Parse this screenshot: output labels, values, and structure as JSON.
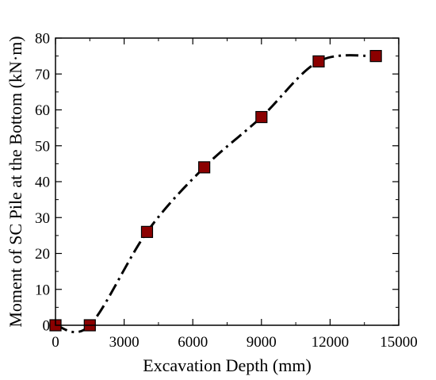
{
  "chart_data": {
    "type": "line",
    "xlabel": "Excavation Depth (mm)",
    "ylabel": "Moment of SC Pile at the Bottom (kN·m)",
    "xlim": [
      0,
      15000
    ],
    "ylim": [
      0,
      80
    ],
    "xticks": [
      0,
      3000,
      6000,
      9000,
      12000,
      15000
    ],
    "yticks": [
      0,
      10,
      20,
      30,
      40,
      50,
      60,
      70,
      80
    ],
    "x_tick_labels": [
      "0",
      "3000",
      "6000",
      "9000",
      "12000",
      "15000"
    ],
    "y_tick_labels": [
      "0",
      "10",
      "20",
      "30",
      "40",
      "50",
      "60",
      "70",
      "80"
    ],
    "grid": false,
    "series": [
      {
        "x": [
          0,
          1500,
          4000,
          6500,
          9000,
          11500,
          14000
        ],
        "y": [
          0,
          0,
          26,
          44,
          58,
          73.5,
          75
        ],
        "marker": "square",
        "marker_color": "#8B0000",
        "line_style": "dash-dot",
        "line_color": "#000000"
      }
    ]
  }
}
